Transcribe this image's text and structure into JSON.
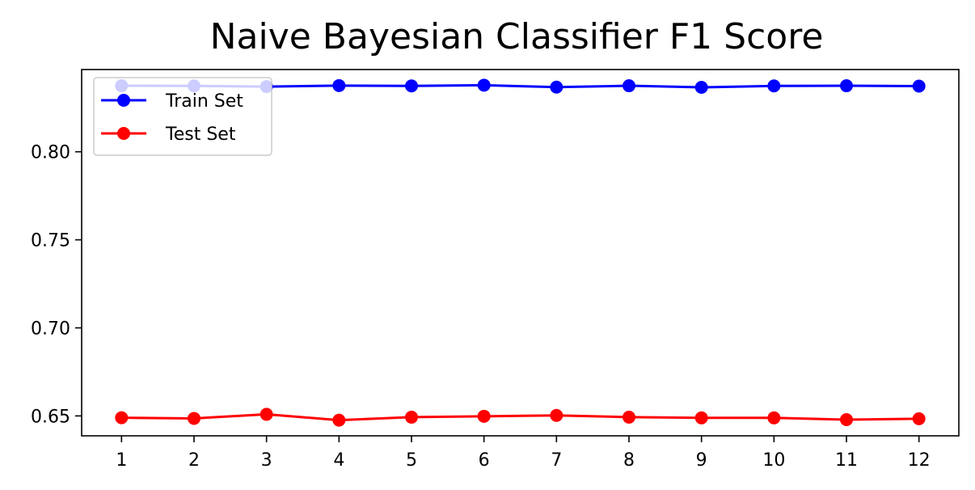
{
  "chart_data": {
    "type": "line",
    "title": "Naive Bayesian Classifier F1 Score",
    "xlabel": "",
    "ylabel": "",
    "x": [
      1,
      2,
      3,
      4,
      5,
      6,
      7,
      8,
      9,
      10,
      11,
      12
    ],
    "x_ticks": [
      "1",
      "2",
      "3",
      "4",
      "5",
      "6",
      "7",
      "8",
      "9",
      "10",
      "11",
      "12"
    ],
    "y_ticks": [
      "0.65",
      "0.70",
      "0.75",
      "0.80"
    ],
    "y_tick_values": [
      0.65,
      0.7,
      0.75,
      0.8
    ],
    "xlim": [
      0.45,
      12.55
    ],
    "ylim": [
      0.6387,
      0.8467
    ],
    "grid": false,
    "legend_position": "top-left",
    "series": [
      {
        "name": "Train Set",
        "color": "#0000ff",
        "marker": "circle",
        "values": [
          0.8375,
          0.8374,
          0.837,
          0.8376,
          0.8374,
          0.8378,
          0.8367,
          0.8375,
          0.8366,
          0.8374,
          0.8375,
          0.8373
        ]
      },
      {
        "name": "Test Set",
        "color": "#ff0000",
        "marker": "circle",
        "values": [
          0.649,
          0.6486,
          0.6509,
          0.6476,
          0.6493,
          0.6498,
          0.6503,
          0.6493,
          0.6489,
          0.6489,
          0.6479,
          0.6484
        ]
      }
    ]
  }
}
